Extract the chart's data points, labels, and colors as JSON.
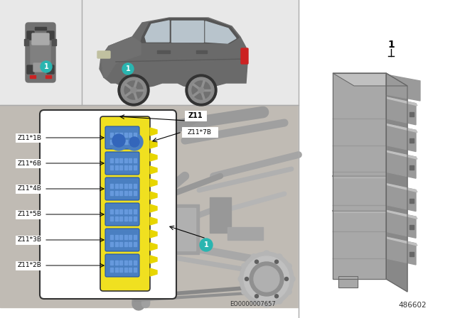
{
  "bg_color": "#ffffff",
  "top_left_bg": "#e8e8e8",
  "top_right_bg": "#e8e8e8",
  "engine_bg": "#c0bbb4",
  "right_panel_bg": "#ffffff",
  "part_number": "486602",
  "diagram_code": "EO0000007657",
  "connector_labels": [
    "Z11*1B",
    "Z11*6B",
    "Z11*4B",
    "Z11*5B",
    "Z11*3B",
    "Z11*2B"
  ],
  "z11_label": "Z11",
  "z11_7b_label": "Z11*7B",
  "teal_color": "#2ab5b0",
  "yellow_color": "#f0e020",
  "blue_connector_color": "#4a7fc1",
  "car_body_color": "#707070",
  "car_dark_color": "#505050",
  "car_window_color": "#c0c8d0",
  "car_wheel_dark": "#404040",
  "car_wheel_light": "#909090",
  "car_underbody": "#585858",
  "part_color_main": "#a8a8a8",
  "part_color_dark": "#888888",
  "part_color_light": "#c0c0c0",
  "part_color_shadow": "#707070",
  "divider_color": "#aaaaaa",
  "label_fontsize": 6.5,
  "small_fontsize": 6.0
}
